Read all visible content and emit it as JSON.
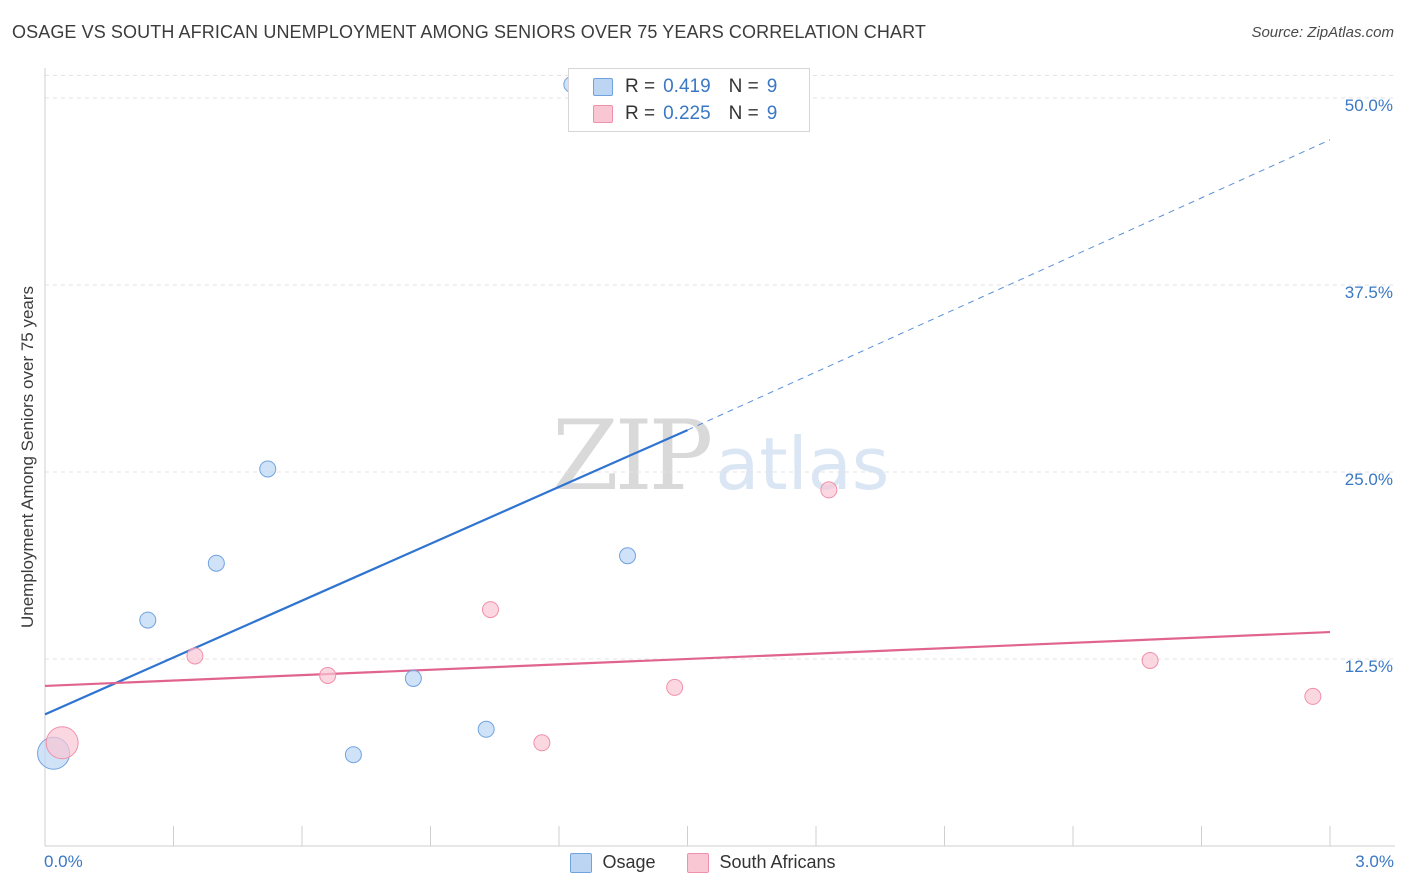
{
  "title": "OSAGE VS SOUTH AFRICAN UNEMPLOYMENT AMONG SENIORS OVER 75 YEARS CORRELATION CHART",
  "source": "Source: ZipAtlas.com",
  "watermark": {
    "zip": "ZIP",
    "atlas": "atlas"
  },
  "chart_data": {
    "type": "scatter",
    "title": "OSAGE VS SOUTH AFRICAN UNEMPLOYMENT AMONG SENIORS OVER 75 YEARS CORRELATION CHART",
    "xlabel": "",
    "ylabel": "Unemployment Among Seniors over 75 years",
    "xlim": [
      0.0,
      3.0
    ],
    "ylim": [
      0.0,
      52.0
    ],
    "x_min_label": "0.0%",
    "x_max_label": "3.0%",
    "yticks": [
      {
        "value": 12.5,
        "label": "12.5%"
      },
      {
        "value": 25.0,
        "label": "25.0%"
      },
      {
        "value": 37.5,
        "label": "37.5%"
      },
      {
        "value": 50.0,
        "label": "50.0%"
      }
    ],
    "grid": true,
    "legend_position": "top-center",
    "series": [
      {
        "name": "Osage",
        "color": "#6fa3e0",
        "fill": "#bcd5f3",
        "line_color": "#2f74d0",
        "r_label": "R =",
        "r_value": "0.419",
        "n_label": "N =",
        "n_value": "9",
        "points": [
          {
            "x": 0.02,
            "y": 6.2,
            "size": "large"
          },
          {
            "x": 0.24,
            "y": 15.1,
            "size": "normal"
          },
          {
            "x": 0.4,
            "y": 18.9,
            "size": "normal"
          },
          {
            "x": 0.52,
            "y": 25.2,
            "size": "normal"
          },
          {
            "x": 0.72,
            "y": 6.1,
            "size": "normal"
          },
          {
            "x": 0.86,
            "y": 11.2,
            "size": "normal"
          },
          {
            "x": 1.03,
            "y": 7.8,
            "size": "normal"
          },
          {
            "x": 1.23,
            "y": 50.9,
            "size": "normal"
          },
          {
            "x": 1.36,
            "y": 19.4,
            "size": "normal"
          }
        ],
        "trend": {
          "x0": 0.0,
          "y0": 8.8,
          "x1": 1.5,
          "y1": 27.8,
          "dash_x1": 3.0,
          "dash_y1": 47.2
        }
      },
      {
        "name": "South Africans",
        "color": "#f090aa",
        "fill": "#f9c6d4",
        "line_color": "#e0648e",
        "r_label": "R =",
        "r_value": "0.225",
        "n_label": "N =",
        "n_value": "9",
        "points": [
          {
            "x": 0.04,
            "y": 6.9,
            "size": "large"
          },
          {
            "x": 0.35,
            "y": 12.7,
            "size": "normal"
          },
          {
            "x": 0.66,
            "y": 11.4,
            "size": "normal"
          },
          {
            "x": 1.04,
            "y": 15.8,
            "size": "normal"
          },
          {
            "x": 1.16,
            "y": 6.9,
            "size": "normal"
          },
          {
            "x": 1.47,
            "y": 10.6,
            "size": "normal"
          },
          {
            "x": 1.83,
            "y": 23.8,
            "size": "normal"
          },
          {
            "x": 2.58,
            "y": 12.4,
            "size": "normal"
          },
          {
            "x": 2.96,
            "y": 10.0,
            "size": "normal"
          }
        ],
        "trend": {
          "x0": 0.0,
          "y0": 10.7,
          "x1": 3.0,
          "y1": 14.3
        }
      }
    ]
  }
}
